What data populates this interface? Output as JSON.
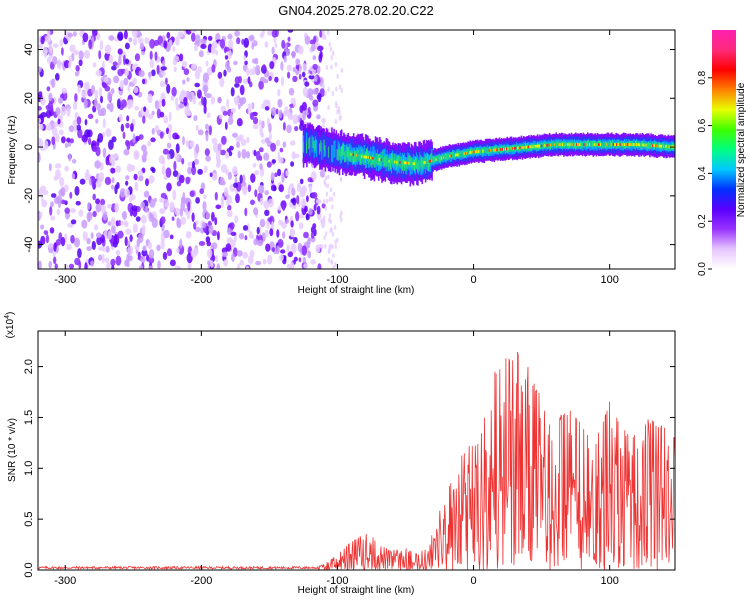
{
  "figure": {
    "title": "GN04.2025.278.02.20.C22"
  },
  "chart_data": [
    {
      "type": "heatmap",
      "name": "spectrogram",
      "xlabel": "Height of straight line (km)",
      "ylabel": "Frequency (Hz)",
      "xlim": [
        -320,
        148
      ],
      "ylim": [
        -50,
        48
      ],
      "xticks": [
        -300,
        -200,
        -100,
        0,
        100
      ],
      "yticks": [
        -40,
        -20,
        0,
        20,
        40
      ],
      "noise_region_km": [
        -320,
        -110
      ],
      "signal_center_hz": [
        {
          "x": -120,
          "y": 1
        },
        {
          "x": -100,
          "y": -2
        },
        {
          "x": -80,
          "y": -4
        },
        {
          "x": -60,
          "y": -6
        },
        {
          "x": -40,
          "y": -7
        },
        {
          "x": -20,
          "y": -4
        },
        {
          "x": 0,
          "y": -2
        },
        {
          "x": 20,
          "y": -1
        },
        {
          "x": 40,
          "y": 0
        },
        {
          "x": 60,
          "y": 1
        },
        {
          "x": 80,
          "y": 1
        },
        {
          "x": 100,
          "y": 1
        },
        {
          "x": 120,
          "y": 1
        },
        {
          "x": 148,
          "y": 0
        }
      ],
      "colorbar": {
        "label": "Normalized spectral amplitude",
        "range": [
          0,
          1
        ],
        "ticks": [
          0.0,
          0.2,
          0.4,
          0.6,
          0.8
        ],
        "colors": [
          "#ffffff",
          "#e6c6ff",
          "#9a33ff",
          "#5a00ff",
          "#0030ff",
          "#00c8ff",
          "#00ff80",
          "#40ff00",
          "#e8ff00",
          "#ff8000",
          "#ff0000",
          "#ff2a7a",
          "#ff20b0"
        ]
      }
    },
    {
      "type": "line",
      "name": "snr",
      "xlabel": "Height of straight line (km)",
      "ylabel": "SNR (10 * v/v)",
      "multiplier_label": "(x10",
      "multiplier_exp": "4",
      "xlim": [
        -320,
        148
      ],
      "ylim": [
        0,
        2.35
      ],
      "xticks": [
        -300,
        -200,
        -100,
        0,
        100
      ],
      "yticks": [
        0.0,
        0.5,
        1.0,
        1.5,
        2.0
      ],
      "series": [
        {
          "name": "SNR",
          "color": "#ee3333",
          "envelope": [
            {
              "x": -320,
              "y": 0.03
            },
            {
              "x": -115,
              "y": 0.03
            },
            {
              "x": -110,
              "y": 0.06
            },
            {
              "x": -100,
              "y": 0.15
            },
            {
              "x": -90,
              "y": 0.28
            },
            {
              "x": -80,
              "y": 0.36
            },
            {
              "x": -70,
              "y": 0.32
            },
            {
              "x": -60,
              "y": 0.2
            },
            {
              "x": -50,
              "y": 0.22
            },
            {
              "x": -40,
              "y": 0.15
            },
            {
              "x": -32,
              "y": 0.3
            },
            {
              "x": -25,
              "y": 0.6
            },
            {
              "x": -15,
              "y": 0.95
            },
            {
              "x": -5,
              "y": 1.25
            },
            {
              "x": 5,
              "y": 1.3
            },
            {
              "x": 15,
              "y": 2.0
            },
            {
              "x": 25,
              "y": 2.1
            },
            {
              "x": 35,
              "y": 2.2
            },
            {
              "x": 45,
              "y": 1.85
            },
            {
              "x": 55,
              "y": 1.5
            },
            {
              "x": 70,
              "y": 1.6
            },
            {
              "x": 90,
              "y": 1.3
            },
            {
              "x": 100,
              "y": 1.7
            },
            {
              "x": 115,
              "y": 1.3
            },
            {
              "x": 125,
              "y": 1.5
            },
            {
              "x": 138,
              "y": 1.45
            },
            {
              "x": 148,
              "y": 1.3
            }
          ]
        }
      ]
    }
  ]
}
